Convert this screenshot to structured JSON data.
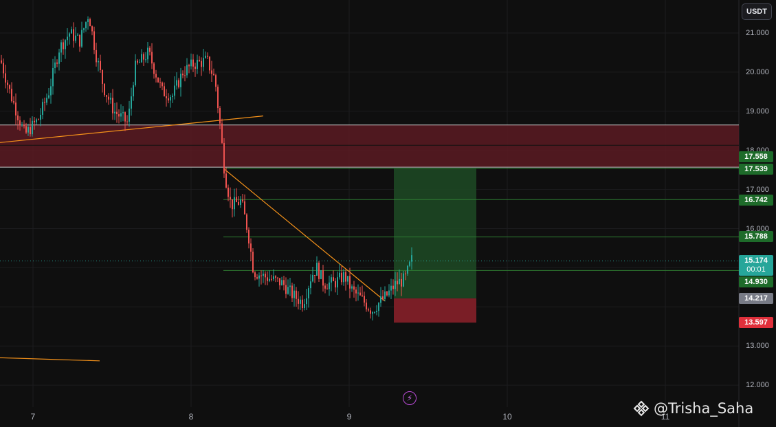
{
  "header": {
    "currency": "USDT"
  },
  "price_axis": {
    "labels": [
      "21.000",
      "20.000",
      "19.000",
      "18.000",
      "17.000",
      "16.000",
      "13.000",
      "12.000"
    ]
  },
  "price_tags": [
    {
      "value": "17.558",
      "color": "#1e6b2a"
    },
    {
      "value": "17.539",
      "color": "#1e6b2a"
    },
    {
      "value": "16.742",
      "color": "#1e6b2a"
    },
    {
      "value": "15.788",
      "color": "#1e6b2a"
    },
    {
      "value": "14.930",
      "color": "#1e6b2a"
    },
    {
      "value": "14.217",
      "color": "#787b86"
    },
    {
      "value": "13.597",
      "color": "#e0303b"
    }
  ],
  "current_price": {
    "value": "15.174",
    "countdown": "00:01",
    "color": "#26a69a"
  },
  "time_axis": {
    "labels": [
      "7",
      "8",
      "9",
      "10",
      "11"
    ]
  },
  "watermark": {
    "text": "@Trisha_Saha",
    "icon": "binance-icon"
  },
  "event_icon": "lightning-icon",
  "colors": {
    "background": "#0f0f0f",
    "up": "#26a69a",
    "down": "#ef5350",
    "zone": "#5a1a22",
    "profit": "#1d4a24",
    "loss": "#7a1e26",
    "trendline": "#f7931a"
  }
}
